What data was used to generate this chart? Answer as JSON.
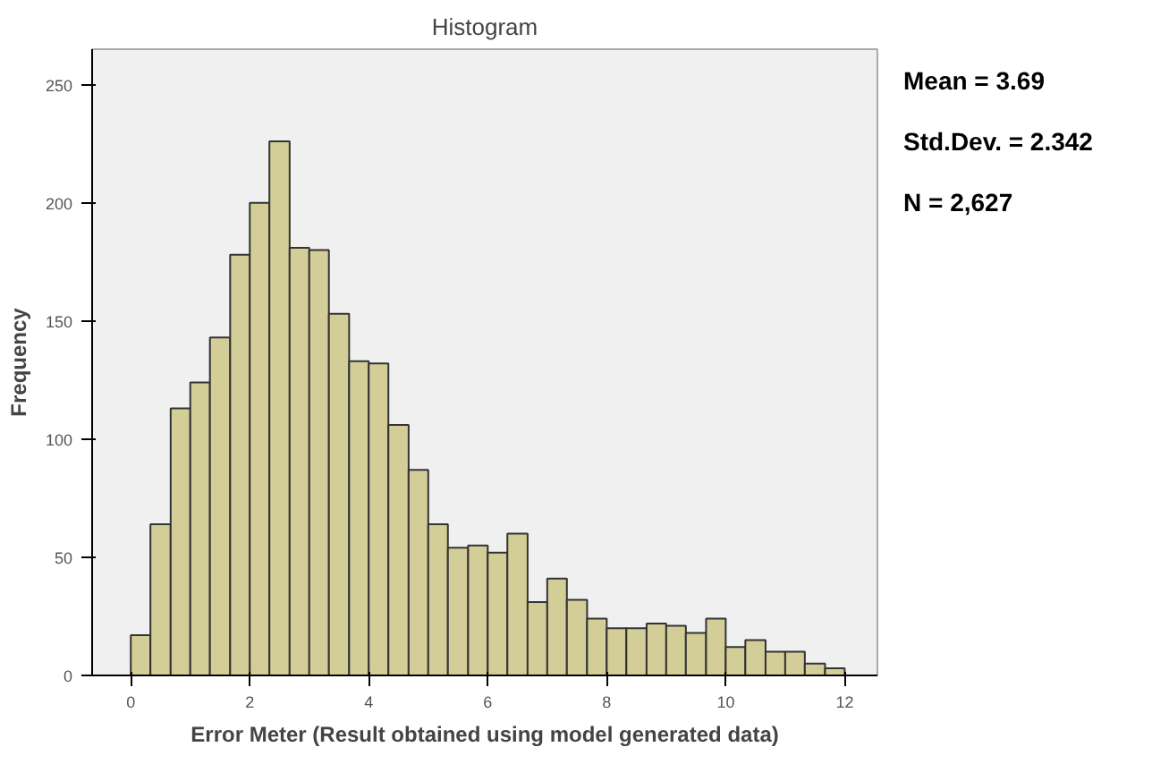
{
  "chart_data": {
    "type": "histogram",
    "title": "Histogram",
    "xlabel": "Error Meter (Result obtained using model generated data)",
    "ylabel": "Frequency",
    "bins": [
      0,
      0.33,
      0.67,
      1,
      1.33,
      1.67,
      2,
      2.33,
      2.67,
      3,
      3.33,
      3.67,
      4,
      4.33,
      4.67,
      5,
      5.33,
      5.67,
      6,
      6.33,
      6.67,
      7,
      7.33,
      7.67,
      8,
      8.33,
      8.67,
      9,
      9.33,
      9.67,
      10,
      10.33,
      10.67,
      11,
      11.33,
      11.67,
      12
    ],
    "values": [
      17,
      64,
      113,
      124,
      143,
      178,
      200,
      226,
      181,
      180,
      153,
      133,
      132,
      106,
      87,
      64,
      54,
      55,
      52,
      60,
      31,
      41,
      32,
      24,
      20,
      20,
      22,
      21,
      18,
      24,
      12,
      15,
      10,
      10,
      5,
      3
    ],
    "color": "#d3ce97",
    "xlim": [
      -0.65,
      12.55
    ],
    "xticks": [
      0,
      2,
      4,
      6,
      8,
      10,
      12
    ],
    "ylim": [
      0,
      265
    ],
    "yticks": [
      0,
      50,
      100,
      150,
      200,
      250
    ],
    "grid": false,
    "annotations": [
      "Mean = 3.69",
      "Std.Dev. = 2.342",
      "N = 2,627"
    ]
  }
}
